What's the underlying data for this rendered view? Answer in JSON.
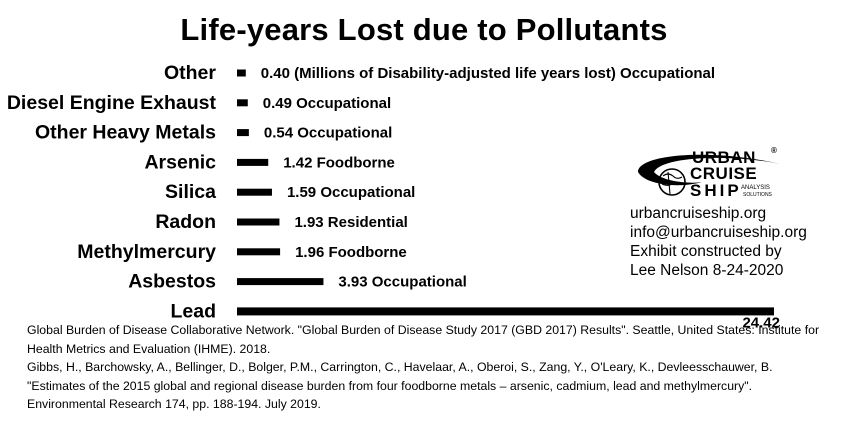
{
  "chart_data": {
    "type": "bar",
    "orientation": "horizontal",
    "title": "Life-years Lost due to Pollutants",
    "categories": [
      "Other",
      "Diesel Engine Exhaust",
      "Other Heavy Metals",
      "Arsenic",
      "Silica",
      "Radon",
      "Methylmercury",
      "Asbestos",
      "Lead"
    ],
    "values": [
      0.4,
      0.49,
      0.54,
      1.42,
      1.59,
      1.93,
      1.96,
      3.93,
      24.42
    ],
    "data_labels": [
      "0.40 (Millions of Disability-adjusted life years lost) Occupational",
      "0.49 Occupational",
      "0.54 Occupational",
      "1.42 Foodborne",
      "1.59 Occupational",
      "1.93 Residential",
      "1.96 Foodborne",
      "3.93 Occupational",
      "24.42"
    ],
    "xlim": [
      0,
      24.42
    ],
    "bar_color": "#000000",
    "grid": false,
    "legend": "none"
  },
  "logo": {
    "line1": "URBAN",
    "line2": "CRUISE",
    "line3": "SHIP",
    "tag1": "ANALYSIS",
    "tag2": "SOLUTIONS",
    "mark": "®"
  },
  "credits": {
    "website": "urbancruiseship.org",
    "email": "info@urbancruiseship.org",
    "line1": "Exhibit constructed by",
    "line2": "Lee Nelson 8-24-2020"
  },
  "citations": [
    "Global Burden of Disease Collaborative Network. \"Global Burden of Disease Study 2017 (GBD 2017) Results\". Seattle, United States: Institute for Health Metrics and Evaluation (IHME). 2018.",
    "Gibbs, H., Barchowsky, A., Bellinger, D., Bolger, P.M., Carrington, C., Havelaar, A., Oberoi, S., Zang, Y., O'Leary, K., Devleesschauwer, B. \"Estimates of the 2015 global and regional disease burden from four foodborne metals – arsenic, cadmium, lead and methylmercury\". Environmental Research 174, pp. 188-194. July 2019."
  ]
}
